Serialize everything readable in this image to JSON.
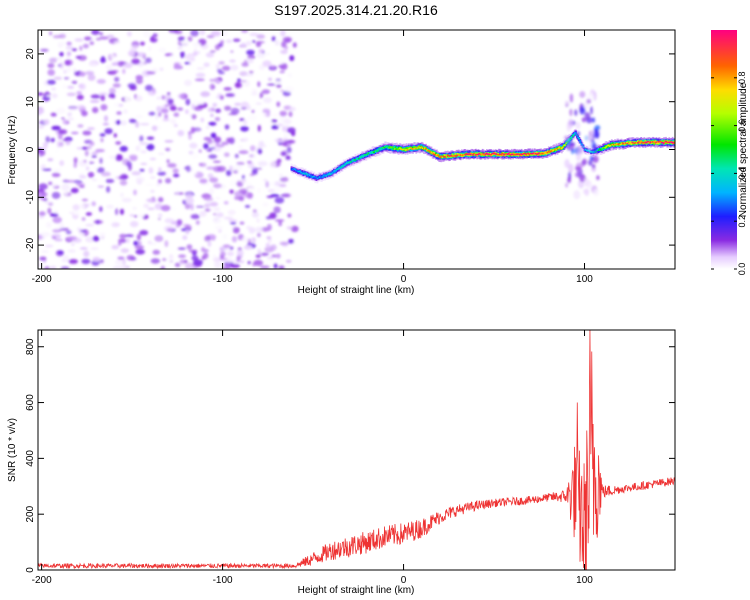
{
  "title": "S197.2025.314.21.20.R16",
  "chart_data": [
    {
      "type": "heatmap",
      "xlabel": "Height of straight line (km)",
      "ylabel": "Frequency (Hz)",
      "xlim": [
        -202,
        150
      ],
      "ylim": [
        -25,
        25
      ],
      "xticks": [
        -200,
        -100,
        0,
        100
      ],
      "yticks": [
        -20,
        -10,
        0,
        10,
        20
      ],
      "xtick_labels": [
        "-200",
        "-100",
        "0",
        "100"
      ],
      "ytick_labels": [
        "-20",
        "-10",
        "0",
        "10",
        "20"
      ],
      "colorbar": {
        "label": "Normalized spectral amplitude",
        "range": [
          0,
          1
        ],
        "ticks": [
          0.0,
          0.2,
          0.4,
          0.6,
          0.8
        ],
        "tick_labels": [
          "0.0",
          "0.2",
          "0.4",
          "0.6",
          "0.8"
        ]
      },
      "noise_region": {
        "x": [
          -202,
          -60
        ],
        "freq": [
          -25,
          25
        ],
        "amplitude_max": 0.15
      },
      "ridge": [
        {
          "x": -62,
          "freq": -4,
          "amp": 0.25
        },
        {
          "x": -55,
          "freq": -5,
          "amp": 0.35
        },
        {
          "x": -48,
          "freq": -6,
          "amp": 0.3
        },
        {
          "x": -40,
          "freq": -5,
          "amp": 0.35
        },
        {
          "x": -32,
          "freq": -3,
          "amp": 0.4
        },
        {
          "x": -20,
          "freq": -1,
          "amp": 0.45
        },
        {
          "x": -10,
          "freq": 0.5,
          "amp": 0.5
        },
        {
          "x": 0,
          "freq": 0,
          "amp": 0.7
        },
        {
          "x": 10,
          "freq": 0.5,
          "amp": 0.75
        },
        {
          "x": 20,
          "freq": -1.5,
          "amp": 0.85
        },
        {
          "x": 35,
          "freq": -1,
          "amp": 0.9
        },
        {
          "x": 50,
          "freq": -1,
          "amp": 0.95
        },
        {
          "x": 65,
          "freq": -1,
          "amp": 0.95
        },
        {
          "x": 78,
          "freq": -0.8,
          "amp": 0.9
        },
        {
          "x": 88,
          "freq": 0.5,
          "amp": 0.7
        },
        {
          "x": 95,
          "freq": 3.5,
          "amp": 0.35
        },
        {
          "x": 100,
          "freq": 0,
          "amp": 0.3
        },
        {
          "x": 105,
          "freq": -0.5,
          "amp": 0.35
        },
        {
          "x": 115,
          "freq": 1,
          "amp": 0.75
        },
        {
          "x": 130,
          "freq": 1.5,
          "amp": 0.9
        },
        {
          "x": 150,
          "freq": 1.5,
          "amp": 0.95
        }
      ]
    },
    {
      "type": "line",
      "xlabel": "Height of straight line (km)",
      "ylabel": "SNR (10 * v/v)",
      "xlim": [
        -202,
        150
      ],
      "ylim": [
        0,
        860
      ],
      "xticks": [
        -200,
        -100,
        0,
        100
      ],
      "yticks": [
        0,
        200,
        400,
        600,
        800
      ],
      "xtick_labels": [
        "-200",
        "-100",
        "0",
        "100"
      ],
      "ytick_labels": [
        "0",
        "200",
        "400",
        "600",
        "800"
      ],
      "series": [
        {
          "name": "SNR",
          "color": "#ee3333",
          "x": [
            -202,
            -150,
            -100,
            -60,
            -50,
            -40,
            -30,
            -20,
            -10,
            0,
            10,
            20,
            30,
            40,
            50,
            60,
            70,
            80,
            90,
            95,
            100,
            104,
            110,
            120,
            130,
            140,
            150
          ],
          "y": [
            15,
            15,
            15,
            15,
            40,
            70,
            85,
            100,
            120,
            130,
            150,
            190,
            215,
            230,
            240,
            245,
            250,
            260,
            265,
            280,
            150,
            400,
            280,
            290,
            300,
            310,
            320
          ],
          "noise_amplitude": [
            8,
            8,
            8,
            8,
            25,
            35,
            40,
            40,
            40,
            40,
            35,
            25,
            20,
            18,
            15,
            15,
            15,
            15,
            25,
            200,
            250,
            450,
            25,
            15,
            15,
            15,
            15
          ],
          "peaks": [
            {
              "x": 96,
              "y": 600
            },
            {
              "x": 103,
              "y": 860
            }
          ]
        }
      ]
    }
  ]
}
